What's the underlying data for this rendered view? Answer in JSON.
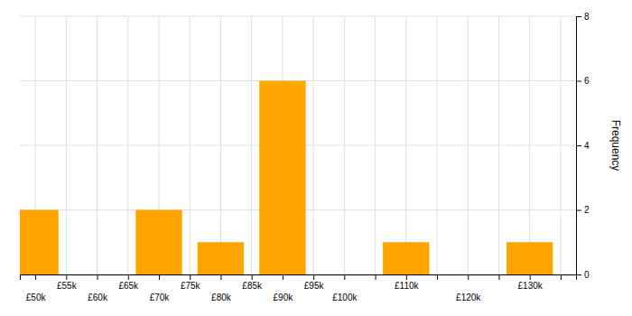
{
  "chart_data": {
    "type": "histogram",
    "bins": [
      45000,
      55000,
      65000,
      75000,
      85000,
      95000,
      105000,
      115000,
      125000,
      135000
    ],
    "values": [
      2,
      0,
      2,
      1,
      6,
      0,
      1,
      0,
      1
    ],
    "color": "#FFA500",
    "y_label": "Frequency",
    "xlim": [
      47500,
      137500
    ],
    "xticks": [
      {
        "value": 50000,
        "label": "£50k"
      },
      {
        "value": 55000,
        "label": "£55k"
      },
      {
        "value": 60000,
        "label": "£60k"
      },
      {
        "value": 65000,
        "label": "£65k"
      },
      {
        "value": 70000,
        "label": "£70k"
      },
      {
        "value": 75000,
        "label": "£75k"
      },
      {
        "value": 80000,
        "label": "£80k"
      },
      {
        "value": 85000,
        "label": "£85k"
      },
      {
        "value": 90000,
        "label": "£90k"
      },
      {
        "value": 95000,
        "label": "£95k"
      },
      {
        "value": 100000,
        "label": "£100k"
      },
      {
        "value": 105000,
        "label": null
      },
      {
        "value": 110000,
        "label": "£110k"
      },
      {
        "value": 115000,
        "label": null
      },
      {
        "value": 120000,
        "label": "£120k"
      },
      {
        "value": 125000,
        "label": null
      },
      {
        "value": 130000,
        "label": "£130k"
      },
      {
        "value": 135000,
        "label": null
      }
    ],
    "ylim": [
      0,
      8
    ],
    "yticks": [
      0,
      2,
      4,
      6,
      8
    ],
    "grid": true
  }
}
